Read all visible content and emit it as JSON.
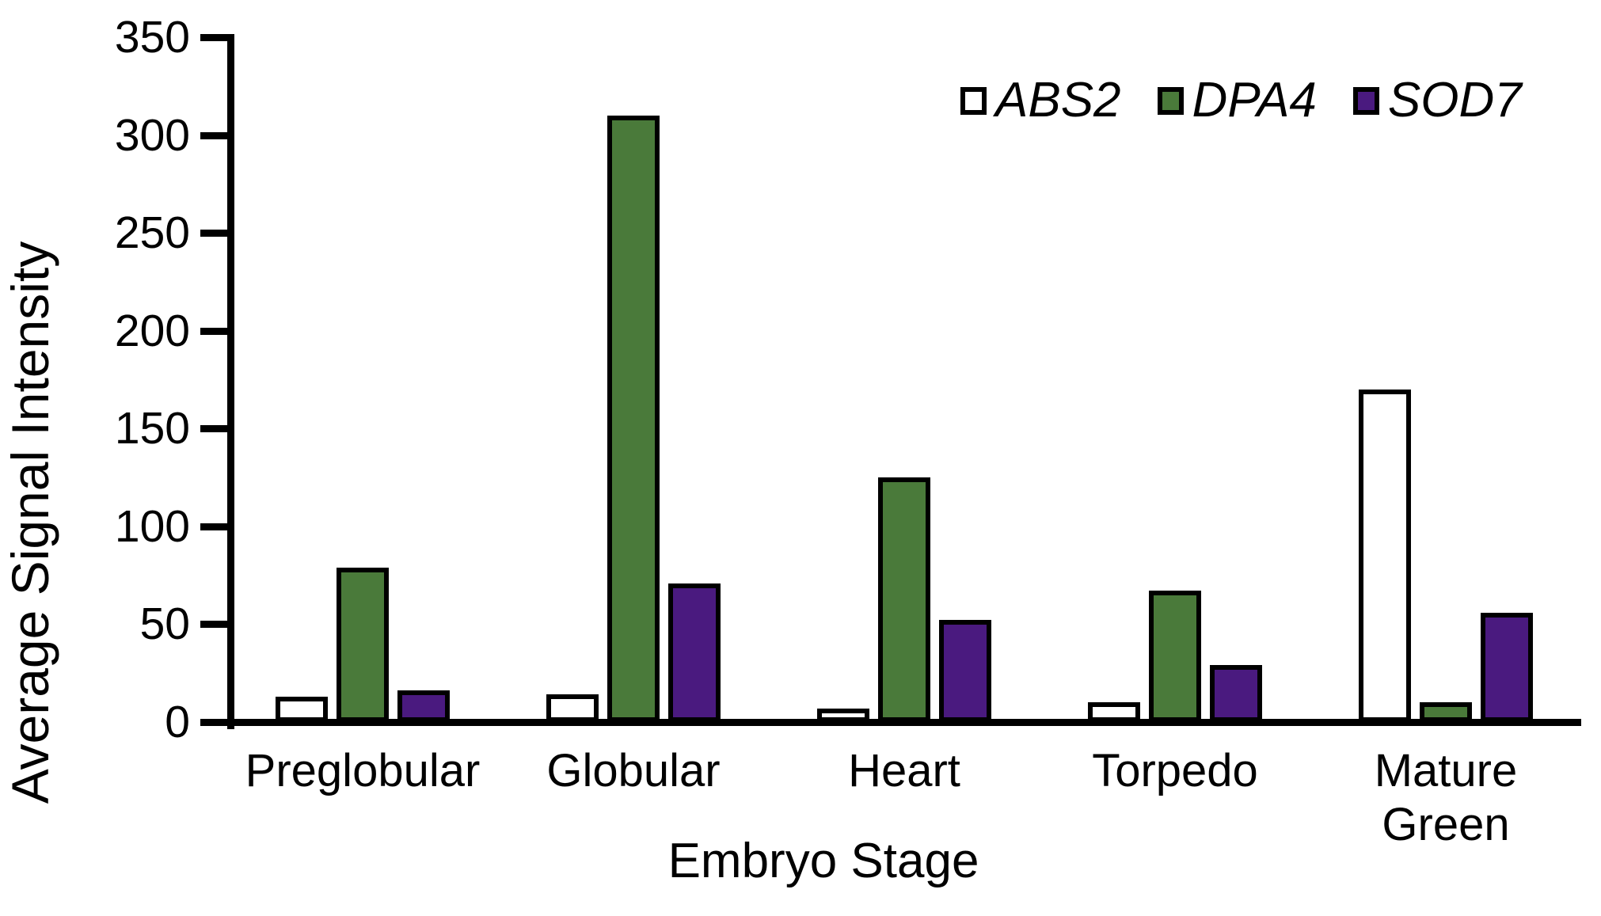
{
  "chart_data": {
    "type": "bar",
    "title": "",
    "xlabel": "Embryo Stage",
    "ylabel": "Average Signal Intensity",
    "categories": [
      "Preglobular",
      "Globular",
      "Heart",
      "Torpedo",
      "Mature Green"
    ],
    "series": [
      {
        "name": "ABS2",
        "fill": "#ffffff",
        "values": [
          13,
          14,
          7,
          10,
          170
        ]
      },
      {
        "name": "DPA4",
        "fill": "#4a7a3a",
        "values": [
          79,
          310,
          125,
          67,
          10
        ]
      },
      {
        "name": "SOD7",
        "fill": "#4a1a7f",
        "values": [
          16,
          71,
          52,
          29,
          56
        ]
      }
    ],
    "ylim": [
      0,
      350
    ],
    "yticks": [
      0,
      50,
      100,
      150,
      200,
      250,
      300,
      350
    ],
    "bar_border_color": "#000000",
    "axis_color": "#000000",
    "legend_position": "top-right",
    "legend_style": "italic",
    "grid": false
  }
}
